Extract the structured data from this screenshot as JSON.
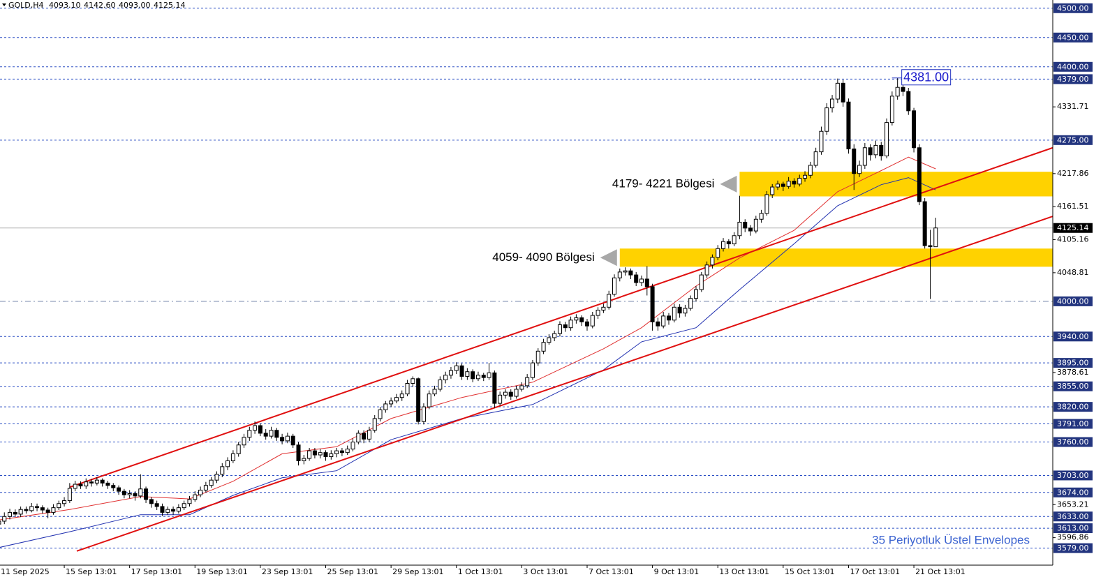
{
  "chart_data": {
    "type": "candlestick",
    "title": "GOLD,H4",
    "header_values": [
      "4093.10",
      "4142.60",
      "4093.00",
      "4125.14"
    ],
    "up_color": "#ffffff",
    "down_color": "#000000",
    "xlim": [
      0.2,
      193.5
    ],
    "ylim": [
      3550,
      4514
    ],
    "xticks": [
      {
        "value": 0,
        "label": "11 Sep 2025"
      },
      {
        "value": 12,
        "label": "15 Sep 13:01"
      },
      {
        "value": 24,
        "label": "17 Sep 13:01"
      },
      {
        "value": 36,
        "label": "19 Sep 13:01"
      },
      {
        "value": 48,
        "label": "23 Sep 13:01"
      },
      {
        "value": 60,
        "label": "25 Sep 13:01"
      },
      {
        "value": 72,
        "label": "29 Sep 13:01"
      },
      {
        "value": 84,
        "label": "1 Oct 13:01"
      },
      {
        "value": 96,
        "label": "3 Oct 13:01"
      },
      {
        "value": 108,
        "label": "7 Oct 13:01"
      },
      {
        "value": 120,
        "label": "9 Oct 13:01"
      },
      {
        "value": 132,
        "label": "13 Oct 13:01"
      },
      {
        "value": 144,
        "label": "15 Oct 13:01"
      },
      {
        "value": 156,
        "label": "17 Oct 13:01"
      },
      {
        "value": 168,
        "label": "21 Oct 13:01"
      }
    ],
    "yticks": [
      4331.71,
      4217.86,
      4161.51,
      4105.16,
      4048.81,
      3878.61,
      3653.21,
      3596.86
    ],
    "levels": [
      {
        "value": 4500,
        "label": "4500.00"
      },
      {
        "value": 4450,
        "label": "4450.00"
      },
      {
        "value": 4400,
        "label": "4400.00"
      },
      {
        "value": 4379,
        "label": "4379.00"
      },
      {
        "value": 4275,
        "label": "4275.00"
      },
      {
        "value": 3940,
        "label": "3940.00"
      },
      {
        "value": 3895,
        "label": "3895.00"
      },
      {
        "value": 3855,
        "label": "3855.00"
      },
      {
        "value": 3820,
        "label": "3820.00"
      },
      {
        "value": 3791,
        "label": "3791.00"
      },
      {
        "value": 3760,
        "label": "3760.00"
      },
      {
        "value": 3703,
        "label": "3703.00"
      },
      {
        "value": 3674,
        "label": "3674.00"
      },
      {
        "value": 3633,
        "label": "3633.00"
      },
      {
        "value": 3613,
        "label": "3613.00"
      },
      {
        "value": 3579,
        "label": "3579.00"
      }
    ],
    "level_color": "#2b4fc4",
    "round_level": {
      "value": 4000,
      "label": "4000.00"
    },
    "current_price": 4125.14,
    "peak_label": {
      "x": 165,
      "value": 4381,
      "label": "4381.00"
    },
    "zones": [
      {
        "x_start": 136,
        "low": 4179,
        "high": 4221,
        "label": "4179- 4221 Bölgesi"
      },
      {
        "x_start": 114,
        "low": 4059,
        "high": 4090,
        "label": "4059- 4090 Bölgesi"
      }
    ],
    "zone_color": "#ffd200",
    "trendlines": [
      {
        "x": [
          13,
          193.5
        ],
        "values": [
          3683,
          4262
        ]
      },
      {
        "x": [
          14.3,
          193.5
        ],
        "values": [
          3574,
          4145
        ]
      }
    ],
    "trendline_color": "#e01010",
    "envelopes": [
      {
        "color": "#e03030",
        "x": [
          0,
          13,
          26,
          35,
          43,
          52,
          62,
          72,
          85,
          98,
          111,
          118,
          128,
          136,
          146,
          154,
          162,
          167,
          172
        ],
        "values": [
          3627,
          3645,
          3667,
          3663,
          3693,
          3740,
          3752,
          3800,
          3836,
          3862,
          3919,
          3955,
          4026,
          4074,
          4121,
          4187,
          4223,
          4246,
          4226
        ]
      },
      {
        "color": "#2030b0",
        "x": [
          0,
          13,
          26,
          35,
          43,
          52,
          62,
          72,
          85,
          98,
          111,
          118,
          128,
          136,
          146,
          154,
          162,
          167,
          172
        ],
        "values": [
          3580,
          3607,
          3636,
          3636,
          3669,
          3699,
          3711,
          3764,
          3800,
          3824,
          3883,
          3931,
          3955,
          4020,
          4098,
          4163,
          4199,
          4211,
          4190
        ]
      }
    ],
    "footer": "35 Periyotluk Üstel Envelopes",
    "candles": [
      [
        3620,
        3630,
        3612,
        3625
      ],
      [
        3625,
        3640,
        3620,
        3633
      ],
      [
        3633,
        3646,
        3628,
        3640
      ],
      [
        3640,
        3645,
        3632,
        3637
      ],
      [
        3637,
        3650,
        3632,
        3645
      ],
      [
        3645,
        3650,
        3638,
        3643
      ],
      [
        3643,
        3656,
        3640,
        3650
      ],
      [
        3650,
        3655,
        3642,
        3648
      ],
      [
        3648,
        3652,
        3638,
        3644
      ],
      [
        3644,
        3648,
        3630,
        3640
      ],
      [
        3640,
        3654,
        3636,
        3648
      ],
      [
        3648,
        3660,
        3644,
        3655
      ],
      [
        3655,
        3666,
        3650,
        3660
      ],
      [
        3660,
        3690,
        3656,
        3681
      ],
      [
        3681,
        3694,
        3676,
        3688
      ],
      [
        3688,
        3693,
        3680,
        3685
      ],
      [
        3685,
        3698,
        3680,
        3692
      ],
      [
        3692,
        3697,
        3684,
        3690
      ],
      [
        3690,
        3700,
        3686,
        3695
      ],
      [
        3695,
        3698,
        3684,
        3690
      ],
      [
        3690,
        3694,
        3680,
        3686
      ],
      [
        3686,
        3690,
        3676,
        3682
      ],
      [
        3682,
        3686,
        3670,
        3676
      ],
      [
        3676,
        3680,
        3664,
        3670
      ],
      [
        3670,
        3678,
        3664,
        3672
      ],
      [
        3672,
        3676,
        3660,
        3668
      ],
      [
        3668,
        3705,
        3664,
        3680
      ],
      [
        3680,
        3684,
        3656,
        3662
      ],
      [
        3662,
        3666,
        3648,
        3655
      ],
      [
        3655,
        3660,
        3644,
        3650
      ],
      [
        3650,
        3655,
        3634,
        3640
      ],
      [
        3640,
        3650,
        3636,
        3645
      ],
      [
        3645,
        3650,
        3636,
        3642
      ],
      [
        3642,
        3654,
        3638,
        3648
      ],
      [
        3648,
        3660,
        3644,
        3655
      ],
      [
        3655,
        3668,
        3650,
        3662
      ],
      [
        3662,
        3676,
        3658,
        3670
      ],
      [
        3670,
        3684,
        3666,
        3678
      ],
      [
        3678,
        3692,
        3674,
        3686
      ],
      [
        3686,
        3700,
        3682,
        3695
      ],
      [
        3695,
        3710,
        3690,
        3705
      ],
      [
        3705,
        3724,
        3700,
        3718
      ],
      [
        3718,
        3734,
        3712,
        3728
      ],
      [
        3728,
        3746,
        3724,
        3740
      ],
      [
        3740,
        3760,
        3735,
        3755
      ],
      [
        3755,
        3774,
        3750,
        3768
      ],
      [
        3768,
        3786,
        3762,
        3780
      ],
      [
        3780,
        3795,
        3774,
        3788
      ],
      [
        3788,
        3792,
        3770,
        3775
      ],
      [
        3775,
        3782,
        3764,
        3770
      ],
      [
        3770,
        3786,
        3766,
        3780
      ],
      [
        3780,
        3784,
        3762,
        3768
      ],
      [
        3768,
        3774,
        3756,
        3762
      ],
      [
        3762,
        3776,
        3758,
        3770
      ],
      [
        3770,
        3774,
        3750,
        3755
      ],
      [
        3755,
        3760,
        3720,
        3728
      ],
      [
        3728,
        3738,
        3722,
        3732
      ],
      [
        3732,
        3750,
        3728,
        3745
      ],
      [
        3745,
        3750,
        3732,
        3738
      ],
      [
        3738,
        3748,
        3732,
        3742
      ],
      [
        3742,
        3746,
        3728,
        3735
      ],
      [
        3735,
        3746,
        3730,
        3740
      ],
      [
        3740,
        3750,
        3734,
        3745
      ],
      [
        3745,
        3750,
        3736,
        3742
      ],
      [
        3742,
        3754,
        3738,
        3748
      ],
      [
        3748,
        3766,
        3744,
        3760
      ],
      [
        3760,
        3780,
        3756,
        3775
      ],
      [
        3775,
        3780,
        3758,
        3765
      ],
      [
        3765,
        3786,
        3760,
        3780
      ],
      [
        3780,
        3806,
        3776,
        3800
      ],
      [
        3800,
        3820,
        3795,
        3815
      ],
      [
        3815,
        3830,
        3810,
        3825
      ],
      [
        3825,
        3836,
        3820,
        3830
      ],
      [
        3830,
        3842,
        3826,
        3836
      ],
      [
        3836,
        3848,
        3830,
        3842
      ],
      [
        3842,
        3866,
        3838,
        3860
      ],
      [
        3860,
        3872,
        3854,
        3868
      ],
      [
        3868,
        3870,
        3790,
        3795
      ],
      [
        3795,
        3826,
        3790,
        3820
      ],
      [
        3820,
        3848,
        3816,
        3842
      ],
      [
        3842,
        3856,
        3838,
        3850
      ],
      [
        3850,
        3872,
        3846,
        3866
      ],
      [
        3866,
        3880,
        3860,
        3874
      ],
      [
        3874,
        3888,
        3868,
        3882
      ],
      [
        3882,
        3896,
        3876,
        3890
      ],
      [
        3890,
        3894,
        3866,
        3872
      ],
      [
        3872,
        3886,
        3866,
        3880
      ],
      [
        3880,
        3884,
        3862,
        3868
      ],
      [
        3868,
        3880,
        3864,
        3874
      ],
      [
        3874,
        3878,
        3864,
        3870
      ],
      [
        3870,
        3895,
        3866,
        3878
      ],
      [
        3878,
        3882,
        3818,
        3826
      ],
      [
        3826,
        3846,
        3822,
        3840
      ],
      [
        3840,
        3850,
        3834,
        3845
      ],
      [
        3845,
        3850,
        3832,
        3838
      ],
      [
        3838,
        3856,
        3834,
        3850
      ],
      [
        3850,
        3862,
        3846,
        3856
      ],
      [
        3856,
        3876,
        3852,
        3870
      ],
      [
        3870,
        3900,
        3866,
        3895
      ],
      [
        3895,
        3920,
        3890,
        3915
      ],
      [
        3915,
        3936,
        3910,
        3930
      ],
      [
        3930,
        3944,
        3926,
        3938
      ],
      [
        3938,
        3950,
        3932,
        3945
      ],
      [
        3945,
        3966,
        3940,
        3960
      ],
      [
        3960,
        3965,
        3948,
        3955
      ],
      [
        3955,
        3974,
        3950,
        3968
      ],
      [
        3968,
        3978,
        3962,
        3972
      ],
      [
        3972,
        3976,
        3958,
        3965
      ],
      [
        3965,
        3970,
        3950,
        3958
      ],
      [
        3958,
        3982,
        3954,
        3976
      ],
      [
        3976,
        3990,
        3970,
        3985
      ],
      [
        3985,
        3996,
        3980,
        3990
      ],
      [
        3990,
        4018,
        3986,
        4012
      ],
      [
        4012,
        4046,
        4008,
        4040
      ],
      [
        4040,
        4056,
        4034,
        4050
      ],
      [
        4050,
        4058,
        4044,
        4052
      ],
      [
        4052,
        4056,
        4038,
        4045
      ],
      [
        4045,
        4050,
        4026,
        4032
      ],
      [
        4032,
        4044,
        4026,
        4038
      ],
      [
        4038,
        4060,
        4010,
        4025
      ],
      [
        4025,
        4030,
        3950,
        3965
      ],
      [
        3965,
        3972,
        3950,
        3958
      ],
      [
        3958,
        3982,
        3954,
        3975
      ],
      [
        3975,
        3980,
        3960,
        3968
      ],
      [
        3968,
        3996,
        3964,
        3990
      ],
      [
        3990,
        3995,
        3972,
        3980
      ],
      [
        3980,
        3994,
        3974,
        3988
      ],
      [
        3988,
        4010,
        3984,
        4005
      ],
      [
        4005,
        4026,
        4000,
        4020
      ],
      [
        4020,
        4050,
        4016,
        4045
      ],
      [
        4045,
        4068,
        4040,
        4062
      ],
      [
        4062,
        4080,
        4056,
        4075
      ],
      [
        4075,
        4096,
        4070,
        4090
      ],
      [
        4090,
        4108,
        4085,
        4102
      ],
      [
        4102,
        4106,
        4090,
        4098
      ],
      [
        4098,
        4118,
        4094,
        4112
      ],
      [
        4112,
        4180,
        4106,
        4135
      ],
      [
        4135,
        4140,
        4118,
        4125
      ],
      [
        4125,
        4130,
        4112,
        4120
      ],
      [
        4120,
        4146,
        4116,
        4140
      ],
      [
        4140,
        4156,
        4134,
        4150
      ],
      [
        4150,
        4188,
        4146,
        4182
      ],
      [
        4182,
        4200,
        4176,
        4195
      ],
      [
        4195,
        4206,
        4190,
        4200
      ],
      [
        4200,
        4204,
        4188,
        4196
      ],
      [
        4196,
        4212,
        4192,
        4205
      ],
      [
        4205,
        4210,
        4194,
        4200
      ],
      [
        4200,
        4216,
        4196,
        4210
      ],
      [
        4210,
        4222,
        4204,
        4215
      ],
      [
        4215,
        4238,
        4210,
        4232
      ],
      [
        4232,
        4262,
        4228,
        4255
      ],
      [
        4255,
        4298,
        4250,
        4290
      ],
      [
        4290,
        4338,
        4284,
        4330
      ],
      [
        4330,
        4352,
        4322,
        4345
      ],
      [
        4345,
        4380,
        4338,
        4372
      ],
      [
        4372,
        4378,
        4332,
        4340
      ],
      [
        4340,
        4346,
        4252,
        4260
      ],
      [
        4260,
        4268,
        4190,
        4218
      ],
      [
        4218,
        4240,
        4212,
        4232
      ],
      [
        4232,
        4270,
        4226,
        4262
      ],
      [
        4262,
        4268,
        4240,
        4250
      ],
      [
        4250,
        4274,
        4244,
        4266
      ],
      [
        4266,
        4272,
        4240,
        4248
      ],
      [
        4248,
        4312,
        4244,
        4305
      ],
      [
        4305,
        4358,
        4300,
        4350
      ],
      [
        4350,
        4381,
        4344,
        4365
      ],
      [
        4365,
        4372,
        4350,
        4358
      ],
      [
        4358,
        4364,
        4318,
        4325
      ],
      [
        4325,
        4330,
        4254,
        4262
      ],
      [
        4262,
        4268,
        4164,
        4170
      ],
      [
        4170,
        4176,
        4090,
        4095
      ],
      [
        4095,
        4122,
        4004,
        4093.1
      ],
      [
        4093.1,
        4142.6,
        4093,
        4125.14
      ]
    ]
  }
}
